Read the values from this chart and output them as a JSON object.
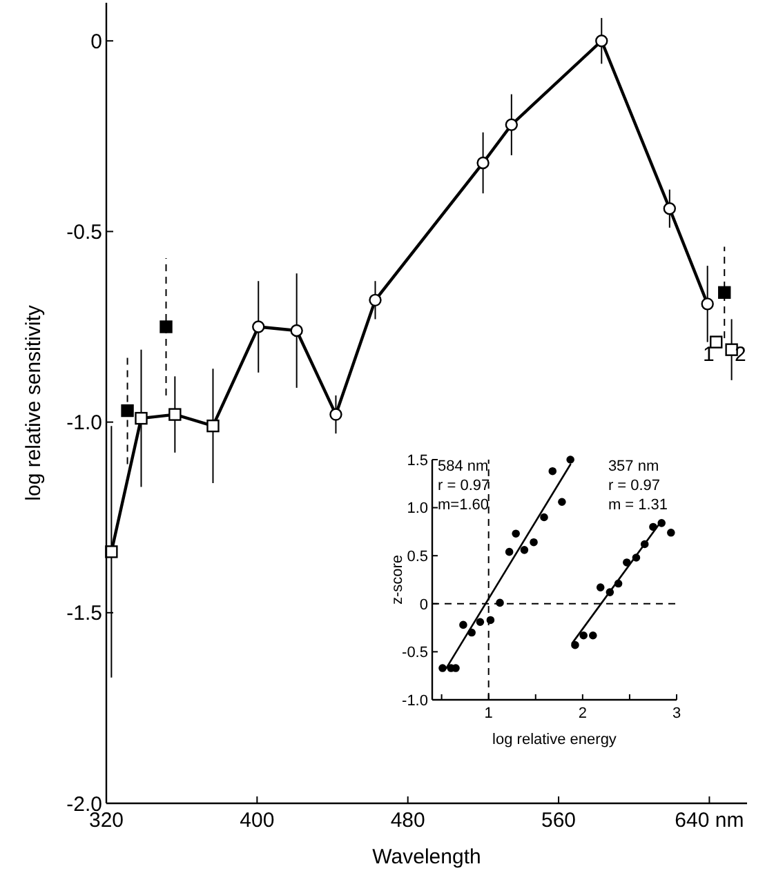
{
  "chart_data": [
    {
      "type": "line",
      "xlabel": "Wavelength",
      "ylabel": "log relative sensitivity",
      "xlim": [
        320,
        660
      ],
      "xticks": [
        320,
        400,
        480,
        560,
        {
          "value": 640,
          "label": "640 nm"
        }
      ],
      "ylim": [
        -2,
        0.1
      ],
      "yticks": [
        {
          "value": 0,
          "label": "0"
        },
        {
          "value": -0.5,
          "label": "-0.5"
        },
        {
          "value": -1,
          "label": "-1.0"
        },
        {
          "value": -1.5,
          "label": "-1.5"
        },
        {
          "value": -2,
          "label": "-2.0"
        }
      ],
      "series": [
        {
          "color": "#000000",
          "marker": "none",
          "x": [
            322.7,
            338.5,
            356.4,
            376.6,
            400.7,
            421,
            441.8,
            462.7,
            519.9,
            535,
            582.8,
            618.9,
            639
          ],
          "values": [
            -1.34,
            -0.99,
            -0.98,
            -1.01,
            -0.75,
            -0.76,
            -0.98,
            -0.68,
            -0.32,
            -0.22,
            0,
            -0.44,
            -0.69
          ]
        },
        {
          "type": "scatter",
          "color": "#ffffff",
          "marker": "square",
          "line_style": "solid",
          "x": [
            322.7,
            338.5,
            356.4,
            376.6
          ],
          "values": [
            -1.34,
            -0.99,
            -0.98,
            -1.01
          ],
          "errors": [
            0.33,
            0.18,
            0.1,
            0.15
          ]
        },
        {
          "type": "scatter",
          "color": "#ffffff",
          "marker": "circle",
          "line_style": "solid",
          "x": [
            400.7,
            421,
            441.8,
            462.7,
            519.9,
            535,
            582.8,
            618.9,
            639
          ],
          "values": [
            -0.75,
            -0.76,
            -0.98,
            -0.68,
            -0.32,
            -0.22,
            0,
            -0.44,
            -0.69
          ],
          "errors": [
            0.12,
            0.15,
            0.05,
            0.05,
            0.08,
            0.08,
            0.06,
            0.05,
            0.1
          ]
        },
        {
          "type": "scatter",
          "color": "#000000",
          "marker": "square",
          "line_style": "dashed",
          "x": [
            331.2,
            351.7,
            648
          ],
          "values": [
            -0.97,
            -0.75,
            -0.66
          ],
          "errors": [
            0.14,
            0.18,
            0.12
          ]
        },
        {
          "type": "scatter",
          "color": "#ffffff",
          "marker": "square",
          "line_style": "solid",
          "x": [
            643.6,
            651.8
          ],
          "values": [
            -0.79,
            -0.81
          ],
          "errors": [
            null,
            0.08
          ]
        }
      ],
      "annotations": [
        {
          "text": "1",
          "x": 639.6,
          "y": -0.82
        },
        {
          "text": "2",
          "x": 656.5,
          "y": -0.82
        }
      ]
    },
    {
      "type": "scatter",
      "xlabel": "log relative energy",
      "ylabel": "z-score",
      "xlim": [
        0.4,
        3
      ],
      "xticks": [
        {
          "value": 0.5,
          "label": null
        },
        1,
        {
          "value": 1.5,
          "label": null
        },
        2,
        {
          "value": 2.5,
          "label": null
        },
        3
      ],
      "ylim": [
        -1,
        1.5
      ],
      "yticks": [
        {
          "value": 1.5,
          "label": "1.5"
        },
        {
          "value": 1,
          "label": "1.0"
        },
        {
          "value": 0.5,
          "label": "0.5"
        },
        {
          "value": 0,
          "label": "0"
        },
        {
          "value": -0.5,
          "label": "-0.5"
        },
        {
          "value": -1,
          "label": "-1.0"
        }
      ],
      "series": [
        {
          "color": "#000000",
          "marker": "circle",
          "x": [
            0.51,
            0.6,
            0.65,
            0.73,
            0.82,
            0.91,
            1.02,
            1.12,
            1.22,
            1.29,
            1.38,
            1.48,
            1.59,
            1.68,
            1.78,
            1.87
          ],
          "values": [
            -0.67,
            -0.67,
            -0.67,
            -0.22,
            -0.3,
            -0.19,
            -0.17,
            0.01,
            0.54,
            0.73,
            0.56,
            0.64,
            0.9,
            1.38,
            1.06,
            1.5
          ]
        },
        {
          "color": "#000000",
          "marker": "circle",
          "x": [
            1.92,
            2.01,
            2.11,
            2.19,
            2.29,
            2.38,
            2.47,
            2.57,
            2.66,
            2.75,
            2.84,
            2.94
          ],
          "values": [
            -0.43,
            -0.33,
            -0.33,
            0.17,
            0.12,
            0.21,
            0.43,
            0.48,
            0.62,
            0.8,
            0.84,
            0.74
          ]
        },
        {
          "type": "line",
          "color": "#000000",
          "marker": "none",
          "x": [
            0.55,
            1.87
          ],
          "values": [
            -0.67,
            1.45
          ]
        },
        {
          "type": "line",
          "color": "#000000",
          "marker": "none",
          "x": [
            1.89,
            2.83
          ],
          "values": [
            -0.41,
            0.85
          ]
        }
      ],
      "ref_lines": [
        {
          "axis": "y",
          "value": 0,
          "line_style": "dashed"
        },
        {
          "axis": "x",
          "value": 1,
          "line_style": "dashed"
        }
      ],
      "annotations": [
        "584 nm",
        "r = 0.97",
        "m=1.60",
        "357 nm",
        "r = 0.97",
        "m = 1.31"
      ]
    }
  ]
}
